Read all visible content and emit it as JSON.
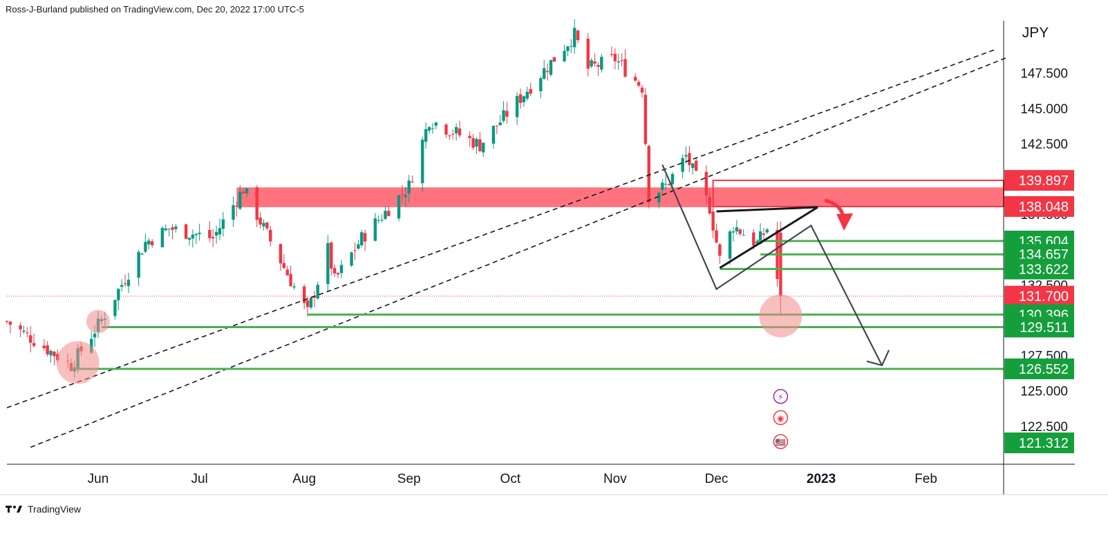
{
  "header": {
    "text": "Ross-J-Burland published on TradingView.com, Dec 20, 2022 17:00 UTC-5"
  },
  "footer": {
    "brand": "TradingView"
  },
  "chart_data": {
    "type": "candlestick",
    "currency": "JPY",
    "ylim": [
      119.8,
      151.2
    ],
    "y_ticks": [
      {
        "value": 147.5,
        "label": "147.500"
      },
      {
        "value": 145.0,
        "label": "145.000"
      },
      {
        "value": 142.5,
        "label": "142.500"
      },
      {
        "value": 137.5,
        "label": "137.500"
      },
      {
        "value": 132.5,
        "label": "132.500"
      },
      {
        "value": 127.5,
        "label": "127.500"
      },
      {
        "value": 125.0,
        "label": "125.000"
      },
      {
        "value": 122.5,
        "label": "122.500"
      }
    ],
    "x_ticks": [
      {
        "label": "Jun",
        "date": "2022-06-01",
        "bold": false
      },
      {
        "label": "Jul",
        "date": "2022-07-01",
        "bold": false
      },
      {
        "label": "Aug",
        "date": "2022-08-01",
        "bold": false
      },
      {
        "label": "Sep",
        "date": "2022-09-01",
        "bold": false
      },
      {
        "label": "Oct",
        "date": "2022-10-01",
        "bold": false
      },
      {
        "label": "Nov",
        "date": "2022-11-01",
        "bold": false
      },
      {
        "label": "Dec",
        "date": "2022-12-01",
        "bold": false
      },
      {
        "label": "2023",
        "date": "2023-01-01",
        "bold": true
      },
      {
        "label": "Feb",
        "date": "2023-02-01",
        "bold": false
      }
    ],
    "x_range": [
      "2022-05-05",
      "2023-02-24"
    ],
    "price_labels": [
      {
        "value": 139.897,
        "label": "139.897",
        "color": "#f23645"
      },
      {
        "value": 138.048,
        "label": "138.048",
        "color": "#f23645"
      },
      {
        "value": 135.604,
        "label": "135.604",
        "color": "#159e3c"
      },
      {
        "value": 134.657,
        "label": "134.657",
        "color": "#159e3c"
      },
      {
        "value": 133.622,
        "label": "133.622",
        "color": "#159e3c"
      },
      {
        "value": 131.7,
        "label": "131.700",
        "color": "#f23645"
      },
      {
        "value": 130.396,
        "label": "130.396",
        "color": "#159e3c"
      },
      {
        "value": 129.511,
        "label": "129.511",
        "color": "#159e3c"
      },
      {
        "value": 126.552,
        "label": "126.552",
        "color": "#159e3c"
      },
      {
        "value": 121.312,
        "label": "121.312",
        "color": "#159e3c"
      }
    ],
    "anchors": [
      {
        "date": "2022-05-05",
        "price": 129.9
      },
      {
        "date": "2022-05-24",
        "price": 126.8
      },
      {
        "date": "2022-06-02",
        "price": 130.0
      },
      {
        "date": "2022-06-15",
        "price": 135.5
      },
      {
        "date": "2022-06-22",
        "price": 136.5
      },
      {
        "date": "2022-07-05",
        "price": 135.8
      },
      {
        "date": "2022-07-14",
        "price": 139.3
      },
      {
        "date": "2022-08-02",
        "price": 130.5
      },
      {
        "date": "2022-08-08",
        "price": 135.0
      },
      {
        "date": "2022-08-10",
        "price": 132.8
      },
      {
        "date": "2022-08-18",
        "price": 135.8
      },
      {
        "date": "2022-09-01",
        "price": 139.5
      },
      {
        "date": "2022-09-07",
        "price": 144.2
      },
      {
        "date": "2022-09-22",
        "price": 142.4
      },
      {
        "date": "2022-10-20",
        "price": 150.2
      },
      {
        "date": "2022-10-24",
        "price": 147.8
      },
      {
        "date": "2022-11-01",
        "price": 148.5
      },
      {
        "date": "2022-11-09",
        "price": 146.5
      },
      {
        "date": "2022-11-11",
        "price": 138.8
      },
      {
        "date": "2022-11-16",
        "price": 139.5
      },
      {
        "date": "2022-11-22",
        "price": 141.6
      },
      {
        "date": "2022-11-29",
        "price": 138.0
      },
      {
        "date": "2022-12-02",
        "price": 134.3
      },
      {
        "date": "2022-12-06",
        "price": 136.7
      },
      {
        "date": "2022-12-13",
        "price": 135.4
      },
      {
        "date": "2022-12-16",
        "price": 136.5
      },
      {
        "date": "2022-12-20",
        "price": 131.7
      }
    ],
    "horizontal_lines": [
      {
        "value": 135.604,
        "from": "2022-12-13",
        "color": "#4caf50"
      },
      {
        "value": 134.657,
        "from": "2022-12-14",
        "color": "#4caf50"
      },
      {
        "value": 133.622,
        "from": "2022-12-02",
        "color": "#4caf50"
      },
      {
        "value": 130.396,
        "from": "2022-08-02",
        "color": "#4caf50"
      },
      {
        "value": 129.511,
        "from": "2022-06-02",
        "color": "#4caf50"
      },
      {
        "value": 126.552,
        "from": "2022-05-24",
        "color": "#4caf50"
      }
    ],
    "resistance_zone": {
      "low": 138.0,
      "high": 139.4,
      "from": "2022-07-12",
      "color": "#ff5b67"
    },
    "box": {
      "low": 138.048,
      "high": 139.897,
      "from": "2022-11-30",
      "color": "#f23645"
    },
    "last_close_line": {
      "value": 131.7,
      "color": "#f23645"
    },
    "trendlines": [
      {
        "from_date": "2022-05-05",
        "from_price": 123.8,
        "to_date": "2023-02-22",
        "to_price": 149.2,
        "dash": true
      },
      {
        "from_date": "2022-05-12",
        "from_price": 121.0,
        "to_date": "2023-02-25",
        "to_price": 148.6,
        "dash": true
      }
    ],
    "triangle": {
      "upper": [
        {
          "date": "2022-12-01",
          "price": 137.7
        },
        {
          "date": "2022-12-31",
          "price": 138.0
        }
      ],
      "lower": [
        {
          "date": "2022-12-02",
          "price": 133.7
        },
        {
          "date": "2022-12-31",
          "price": 138.0
        }
      ]
    },
    "projection_path": [
      {
        "date": "2022-11-15",
        "price": 141.0
      },
      {
        "date": "2022-12-01",
        "price": 132.2
      },
      {
        "date": "2022-12-29",
        "price": 136.7
      },
      {
        "date": "2023-01-19",
        "price": 126.8
      }
    ],
    "circles": [
      {
        "date": "2022-05-26",
        "price": 127.0
      },
      {
        "date": "2022-06-01",
        "price": 129.9
      },
      {
        "date": "2022-12-20",
        "price": 130.3
      }
    ],
    "event_icons": [
      {
        "date": "2022-12-20",
        "price": 124.6,
        "name": "lightning-icon",
        "glyph": "⚡",
        "color": "#9c27b0"
      },
      {
        "date": "2022-12-20",
        "price": 123.1,
        "name": "record-icon",
        "glyph": "◉",
        "color": "#f23645"
      },
      {
        "date": "2022-12-20",
        "price": 121.4,
        "name": "flag-icon",
        "glyph": "🇺🇸",
        "color": "#f23645"
      }
    ]
  }
}
